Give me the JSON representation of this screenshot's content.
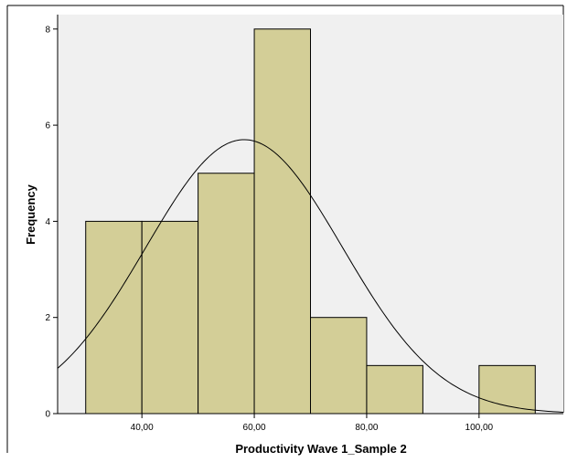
{
  "chart_data": {
    "type": "bar",
    "subtype": "histogram",
    "title": "",
    "xlabel": "Productivity Wave 1_Sample 2",
    "ylabel": "Frequency",
    "xlim": [
      25,
      115
    ],
    "ylim": [
      0,
      8.3
    ],
    "x_ticks": [
      40,
      60,
      80,
      100
    ],
    "x_tick_labels": [
      "40,00",
      "60,00",
      "80,00",
      "100,00"
    ],
    "y_ticks": [
      0,
      2,
      4,
      6,
      8
    ],
    "y_tick_labels": [
      "0",
      "2",
      "4",
      "6",
      "8"
    ],
    "bins": [
      {
        "start": 30,
        "end": 40,
        "count": 4
      },
      {
        "start": 40,
        "end": 50,
        "count": 4
      },
      {
        "start": 50,
        "end": 60,
        "count": 5
      },
      {
        "start": 60,
        "end": 70,
        "count": 8
      },
      {
        "start": 70,
        "end": 80,
        "count": 2
      },
      {
        "start": 80,
        "end": 90,
        "count": 1
      },
      {
        "start": 90,
        "end": 100,
        "count": 0
      },
      {
        "start": 100,
        "end": 110,
        "count": 1
      }
    ],
    "normal_curve": {
      "mean": 58.2,
      "sd": 17.5,
      "n": 25,
      "bin_width": 10
    },
    "grid": false,
    "colors": {
      "plot_background": "#f0f0f0",
      "bar_fill": "#d3ce97",
      "bar_stroke": "#000000",
      "curve": "#000000",
      "axis": "#000000"
    }
  }
}
